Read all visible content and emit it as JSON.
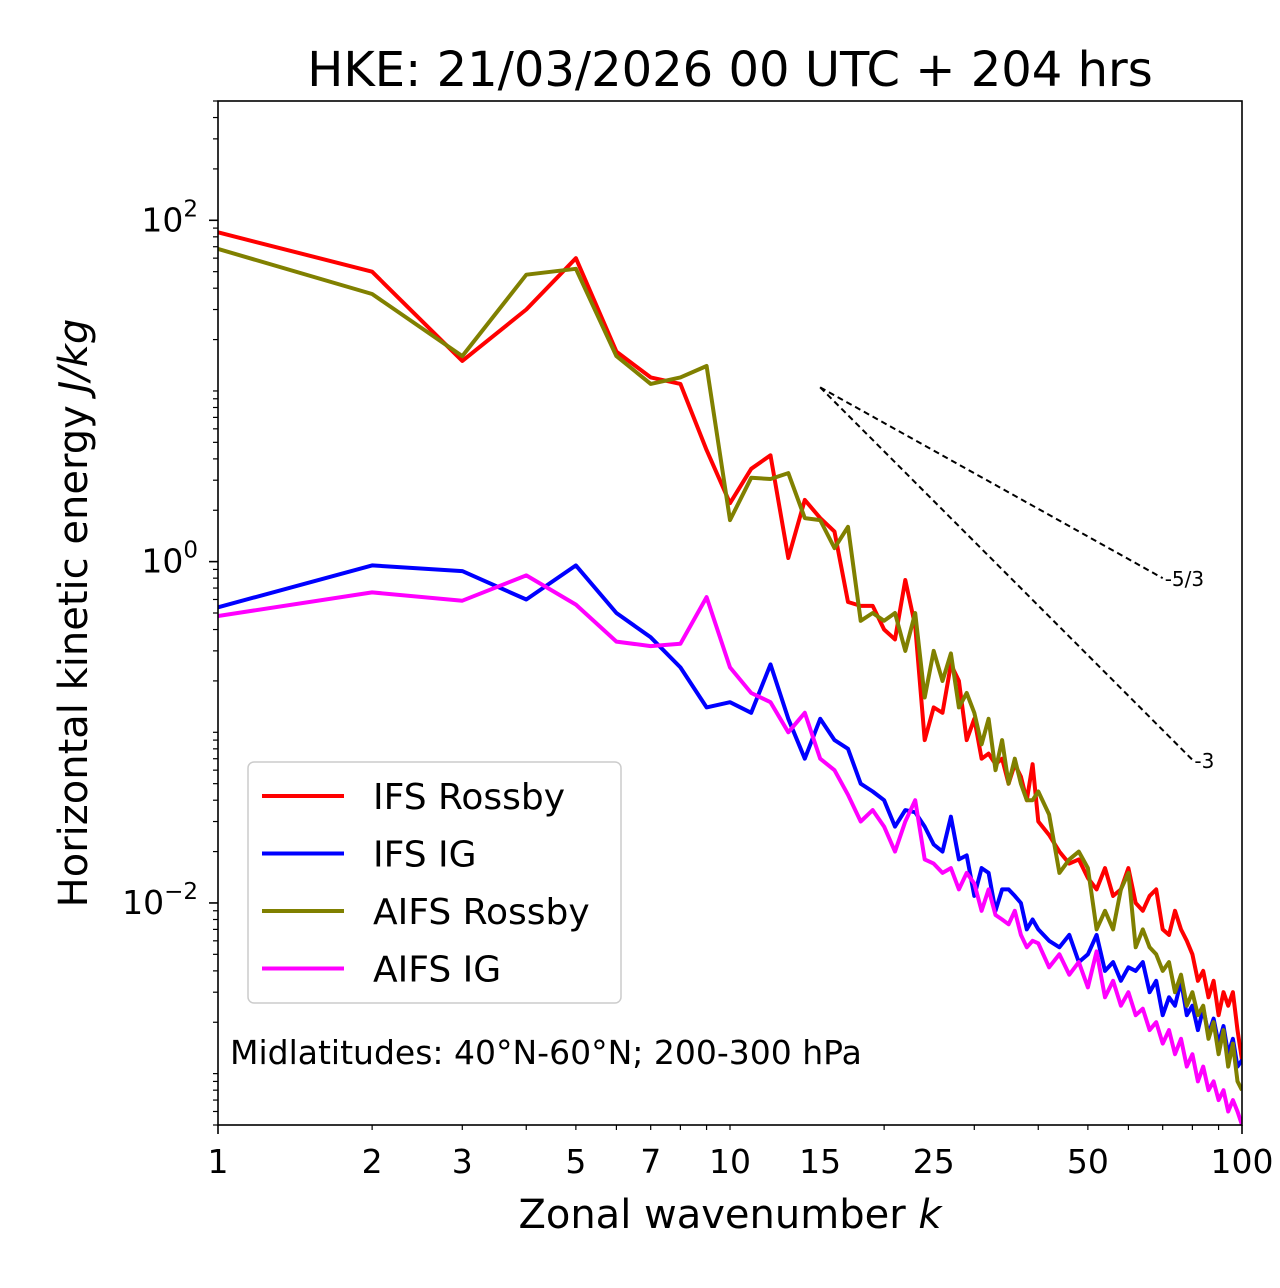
{
  "chart_data": {
    "type": "line",
    "title": "HKE: 21/03/2026 00 UTC + 204 hrs",
    "xlabel": "Zonal wavenumber k",
    "xlabel_main": "Zonal wavenumber ",
    "xlabel_var": "k",
    "ylabel_main": "Horizontal kinetic energy ",
    "ylabel_units": "J/kg",
    "xscale": "log",
    "yscale": "log",
    "xlim": [
      1,
      100
    ],
    "ylim": [
      0.0005,
      500
    ],
    "x_ticks": [
      {
        "value": 1,
        "label": "1"
      },
      {
        "value": 2,
        "label": "2"
      },
      {
        "value": 3,
        "label": "3"
      },
      {
        "value": 5,
        "label": "5"
      },
      {
        "value": 7,
        "label": "7"
      },
      {
        "value": 10,
        "label": "10"
      },
      {
        "value": 15,
        "label": "15"
      },
      {
        "value": 25,
        "label": "25"
      },
      {
        "value": 50,
        "label": "50"
      },
      {
        "value": 100,
        "label": "100"
      }
    ],
    "y_ticks": [
      {
        "value": 0.01,
        "base": "10",
        "exp": "−2"
      },
      {
        "value": 1,
        "base": "10",
        "exp": "0"
      },
      {
        "value": 100,
        "base": "10",
        "exp": "2"
      }
    ],
    "annotation": "Midlatitudes: 40°N-60°N; 200-300 hPa",
    "legend_position": "lower-left",
    "reference_lines": [
      {
        "label": "-5/3",
        "slope": -1.6667,
        "x": [
          15,
          70
        ],
        "y": [
          10.5,
          0.8
        ]
      },
      {
        "label": "-3",
        "slope": -3,
        "x": [
          15,
          80
        ],
        "y": [
          10.5,
          0.069
        ]
      }
    ],
    "series": [
      {
        "name": "IFS Rossby",
        "color": "#ff0000",
        "x": [
          1,
          2,
          3,
          4,
          5,
          6,
          7,
          8,
          9,
          10,
          11,
          12,
          13,
          14,
          15,
          16,
          17,
          18,
          19,
          20,
          21,
          22,
          23,
          24,
          25,
          26,
          27,
          28,
          29,
          30,
          31,
          32,
          33,
          34,
          35,
          36,
          37,
          38,
          39,
          40,
          42,
          44,
          46,
          48,
          50,
          52,
          54,
          56,
          58,
          60,
          62,
          64,
          66,
          68,
          70,
          72,
          74,
          76,
          78,
          80,
          82,
          84,
          86,
          88,
          90,
          92,
          94,
          96,
          98,
          100
        ],
        "values": [
          85,
          50,
          15,
          30,
          60,
          17,
          12,
          11,
          4.5,
          2.2,
          3.5,
          4.2,
          1.05,
          2.3,
          1.8,
          1.5,
          0.58,
          0.55,
          0.55,
          0.4,
          0.35,
          0.78,
          0.42,
          0.09,
          0.14,
          0.13,
          0.25,
          0.2,
          0.09,
          0.12,
          0.07,
          0.075,
          0.065,
          0.07,
          0.05,
          0.065,
          0.055,
          0.04,
          0.065,
          0.03,
          0.025,
          0.02,
          0.017,
          0.018,
          0.014,
          0.012,
          0.016,
          0.011,
          0.012,
          0.016,
          0.01,
          0.009,
          0.011,
          0.012,
          0.007,
          0.0065,
          0.009,
          0.007,
          0.006,
          0.005,
          0.0035,
          0.004,
          0.0028,
          0.0035,
          0.0022,
          0.003,
          0.0025,
          0.003,
          0.0018,
          0.0012
        ]
      },
      {
        "name": "IFS IG",
        "color": "#0000ff",
        "x": [
          1,
          2,
          3,
          4,
          5,
          6,
          7,
          8,
          9,
          10,
          11,
          12,
          13,
          14,
          15,
          16,
          17,
          18,
          19,
          20,
          21,
          22,
          23,
          24,
          25,
          26,
          27,
          28,
          29,
          30,
          31,
          32,
          33,
          34,
          35,
          36,
          37,
          38,
          39,
          40,
          42,
          44,
          46,
          48,
          50,
          52,
          54,
          56,
          58,
          60,
          62,
          64,
          66,
          68,
          70,
          72,
          74,
          76,
          78,
          80,
          82,
          84,
          86,
          88,
          90,
          92,
          94,
          96,
          98,
          100
        ],
        "values": [
          0.54,
          0.95,
          0.88,
          0.6,
          0.95,
          0.5,
          0.36,
          0.24,
          0.14,
          0.15,
          0.13,
          0.25,
          0.12,
          0.07,
          0.12,
          0.09,
          0.08,
          0.05,
          0.045,
          0.04,
          0.028,
          0.035,
          0.034,
          0.028,
          0.022,
          0.02,
          0.032,
          0.018,
          0.019,
          0.011,
          0.016,
          0.015,
          0.009,
          0.012,
          0.012,
          0.011,
          0.01,
          0.007,
          0.008,
          0.007,
          0.006,
          0.0055,
          0.0065,
          0.0045,
          0.005,
          0.0065,
          0.004,
          0.0045,
          0.0035,
          0.0042,
          0.004,
          0.0045,
          0.003,
          0.0035,
          0.0022,
          0.0028,
          0.0025,
          0.0035,
          0.0022,
          0.0025,
          0.0018,
          0.0024,
          0.0017,
          0.0021,
          0.0015,
          0.0019,
          0.0013,
          0.0016,
          0.0011,
          0.0012
        ]
      },
      {
        "name": "AIFS Rossby",
        "color": "#808000",
        "x": [
          1,
          2,
          3,
          4,
          5,
          6,
          7,
          8,
          9,
          10,
          11,
          12,
          13,
          14,
          15,
          16,
          17,
          18,
          19,
          20,
          21,
          22,
          23,
          24,
          25,
          26,
          27,
          28,
          29,
          30,
          31,
          32,
          33,
          34,
          35,
          36,
          37,
          38,
          39,
          40,
          42,
          44,
          46,
          48,
          50,
          52,
          54,
          56,
          58,
          60,
          62,
          64,
          66,
          68,
          70,
          72,
          74,
          76,
          78,
          80,
          82,
          84,
          86,
          88,
          90,
          92,
          94,
          96,
          98,
          100
        ],
        "values": [
          68,
          37,
          16,
          48,
          52,
          16,
          11,
          12,
          14,
          1.75,
          3.1,
          3.05,
          3.3,
          1.8,
          1.75,
          1.2,
          1.6,
          0.45,
          0.5,
          0.45,
          0.5,
          0.3,
          0.5,
          0.16,
          0.3,
          0.2,
          0.29,
          0.14,
          0.17,
          0.13,
          0.085,
          0.12,
          0.06,
          0.09,
          0.05,
          0.07,
          0.05,
          0.04,
          0.04,
          0.045,
          0.033,
          0.015,
          0.018,
          0.02,
          0.016,
          0.007,
          0.009,
          0.007,
          0.012,
          0.015,
          0.0055,
          0.007,
          0.0055,
          0.005,
          0.004,
          0.0045,
          0.003,
          0.0038,
          0.0025,
          0.003,
          0.0022,
          0.0025,
          0.0016,
          0.002,
          0.0013,
          0.0018,
          0.0011,
          0.0015,
          0.0009,
          0.0008
        ]
      },
      {
        "name": "AIFS IG",
        "color": "#ff00ff",
        "x": [
          1,
          2,
          3,
          4,
          5,
          6,
          7,
          8,
          9,
          10,
          11,
          12,
          13,
          14,
          15,
          16,
          17,
          18,
          19,
          20,
          21,
          22,
          23,
          24,
          25,
          26,
          27,
          28,
          29,
          30,
          31,
          32,
          33,
          34,
          35,
          36,
          37,
          38,
          39,
          40,
          42,
          44,
          46,
          48,
          50,
          52,
          54,
          56,
          58,
          60,
          62,
          64,
          66,
          68,
          70,
          72,
          74,
          76,
          78,
          80,
          82,
          84,
          86,
          88,
          90,
          92,
          94,
          96,
          98,
          100
        ],
        "values": [
          0.48,
          0.66,
          0.59,
          0.83,
          0.56,
          0.34,
          0.32,
          0.33,
          0.62,
          0.24,
          0.17,
          0.15,
          0.1,
          0.13,
          0.07,
          0.06,
          0.043,
          0.03,
          0.035,
          0.028,
          0.02,
          0.03,
          0.04,
          0.018,
          0.017,
          0.015,
          0.016,
          0.012,
          0.015,
          0.013,
          0.009,
          0.012,
          0.0085,
          0.008,
          0.0075,
          0.009,
          0.0065,
          0.0055,
          0.006,
          0.0058,
          0.0042,
          0.005,
          0.0038,
          0.0045,
          0.0032,
          0.0052,
          0.0028,
          0.0035,
          0.0025,
          0.003,
          0.0022,
          0.0024,
          0.0018,
          0.002,
          0.0015,
          0.0018,
          0.0013,
          0.0016,
          0.0011,
          0.0013,
          0.0009,
          0.0011,
          0.0008,
          0.0009,
          0.0007,
          0.0008,
          0.0006,
          0.0007,
          0.0006,
          0.0005
        ]
      }
    ]
  }
}
